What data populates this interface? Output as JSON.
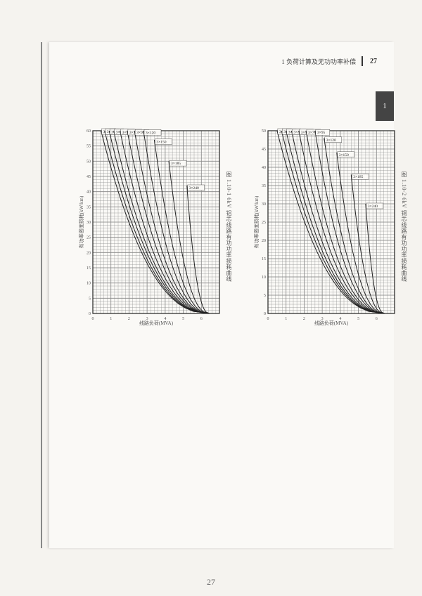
{
  "header": {
    "title": "1 负荷计算及无功功率补偿",
    "page": "27"
  },
  "side_tab": "1",
  "footer_page": "27",
  "charts": [
    {
      "caption": "图 1.10-1  6kV 铝芯线路有功功率损耗曲线",
      "xlabel_vert": "有功率密度损耗(kW/km)",
      "ylabel_vert": "线路负荷(MVA)",
      "xlim": [
        0,
        7
      ],
      "xticks": [
        0,
        1,
        2,
        3,
        4,
        5,
        6
      ],
      "ylim": [
        0,
        60
      ],
      "yticks": [
        0,
        5,
        10,
        15,
        20,
        25,
        30,
        35,
        40,
        45,
        50,
        55,
        60
      ],
      "grid_color": "#888",
      "line_color": "#222",
      "background": "#faf9f6",
      "curves": [
        {
          "ymax": 60,
          "x_at_ymax": 0.45,
          "label": "3×10"
        },
        {
          "ymax": 60,
          "x_at_ymax": 0.65,
          "label": "3×16"
        },
        {
          "ymax": 60,
          "x_at_ymax": 0.9,
          "label": "3×25"
        },
        {
          "ymax": 60,
          "x_at_ymax": 1.15,
          "label": "3×35"
        },
        {
          "ymax": 60,
          "x_at_ymax": 1.5,
          "label": "3×50"
        },
        {
          "ymax": 60,
          "x_at_ymax": 1.9,
          "label": "3×70"
        },
        {
          "ymax": 60,
          "x_at_ymax": 2.3,
          "label": "3×95"
        },
        {
          "ymax": 60,
          "x_at_ymax": 2.8,
          "label": "3×120"
        },
        {
          "ymax": 57,
          "x_at_ymax": 3.4,
          "label": "3×150"
        },
        {
          "ymax": 50,
          "x_at_ymax": 4.2,
          "label": "3×185"
        },
        {
          "ymax": 42,
          "x_at_ymax": 5.2,
          "label": "3×240"
        }
      ]
    },
    {
      "caption": "图 1.10-2  6kV 铜芯线路有功功率损耗曲线",
      "xlabel_vert": "有功率密度损耗(kW/km)",
      "ylabel_vert": "线路负荷(MVA)",
      "xlim": [
        0,
        7
      ],
      "xticks": [
        0,
        1,
        2,
        3,
        4,
        5,
        6
      ],
      "ylim": [
        0,
        50
      ],
      "yticks": [
        0,
        5,
        10,
        15,
        20,
        25,
        30,
        35,
        40,
        45,
        50
      ],
      "grid_color": "#888",
      "line_color": "#222",
      "background": "#faf9f6",
      "curves": [
        {
          "ymax": 50,
          "x_at_ymax": 0.5,
          "label": "3×10"
        },
        {
          "ymax": 50,
          "x_at_ymax": 0.75,
          "label": "3×16"
        },
        {
          "ymax": 50,
          "x_at_ymax": 1.0,
          "label": "3×25"
        },
        {
          "ymax": 50,
          "x_at_ymax": 1.3,
          "label": "3×35"
        },
        {
          "ymax": 50,
          "x_at_ymax": 1.7,
          "label": "3×50"
        },
        {
          "ymax": 50,
          "x_at_ymax": 2.1,
          "label": "3×70"
        },
        {
          "ymax": 50,
          "x_at_ymax": 2.6,
          "label": "3×95"
        },
        {
          "ymax": 48,
          "x_at_ymax": 3.1,
          "label": "3×120"
        },
        {
          "ymax": 44,
          "x_at_ymax": 3.8,
          "label": "3×150"
        },
        {
          "ymax": 38,
          "x_at_ymax": 4.6,
          "label": "3×185"
        },
        {
          "ymax": 30,
          "x_at_ymax": 5.4,
          "label": "3×240"
        }
      ]
    }
  ]
}
